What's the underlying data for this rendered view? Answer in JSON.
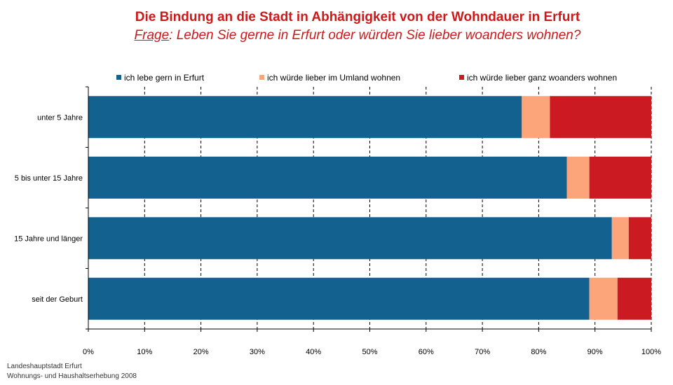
{
  "chart_data": {
    "type": "bar",
    "orientation": "horizontal",
    "stacked": true,
    "title": "Die Bindung an die Stadt in Abhängigkeit von der Wohndauer in Erfurt",
    "subtitle_prefix": "Frage",
    "subtitle_rest": ": Leben Sie gerne in Erfurt oder würden Sie lieber woanders wohnen?",
    "categories": [
      "unter 5 Jahre",
      "5 bis unter 15 Jahre",
      "15 Jahre und länger",
      "seit der Geburt"
    ],
    "series": [
      {
        "name": "ich lebe gern in Erfurt",
        "color": "#13618f",
        "values": [
          77,
          85,
          93,
          89
        ]
      },
      {
        "name": "ich würde lieber im Umland wohnen",
        "color": "#fca47a",
        "values": [
          5,
          4,
          3,
          5
        ]
      },
      {
        "name": "ich würde lieber ganz woanders wohnen",
        "color": "#cc1a22",
        "values": [
          18,
          11,
          4,
          6
        ]
      }
    ],
    "xlim": [
      0,
      100
    ],
    "x_ticks": [
      "0%",
      "10%",
      "20%",
      "30%",
      "40%",
      "50%",
      "60%",
      "70%",
      "80%",
      "90%",
      "100%"
    ],
    "grid": "vertical dashed",
    "legend_position": "top"
  },
  "footer": {
    "line1": "Landeshauptstadt Erfurt",
    "line2": "Wohnungs- und Haushaltserhebung 2008"
  }
}
